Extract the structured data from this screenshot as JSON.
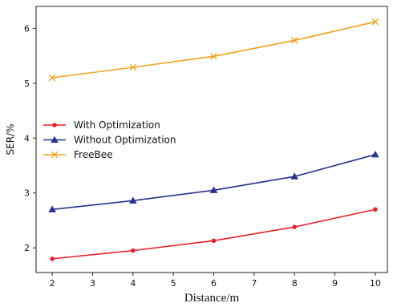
{
  "chart_data": {
    "type": "line",
    "xlabel": "Distance/m",
    "ylabel": "SER/%",
    "xlim": [
      1.6,
      10.3
    ],
    "ylim": [
      1.55,
      6.4
    ],
    "xticks": [
      2,
      3,
      4,
      5,
      6,
      7,
      8,
      9,
      10
    ],
    "yticks": [
      2,
      3,
      4,
      5,
      6
    ],
    "grid": false,
    "legend_position": "center-left",
    "x": [
      2,
      4,
      6,
      8,
      10
    ],
    "series": [
      {
        "name": "With Optimization",
        "color": "#e8202a",
        "marker": "circle",
        "values": [
          1.8,
          1.95,
          2.13,
          2.38,
          2.7
        ]
      },
      {
        "name": "Without Optimization",
        "color": "#27318f",
        "marker": "triangle",
        "values": [
          2.7,
          2.86,
          3.05,
          3.3,
          3.7
        ]
      },
      {
        "name": "FreeBee",
        "color": "#f0a31e",
        "marker": "x",
        "values": [
          5.1,
          5.29,
          5.49,
          5.78,
          6.12
        ]
      }
    ]
  }
}
